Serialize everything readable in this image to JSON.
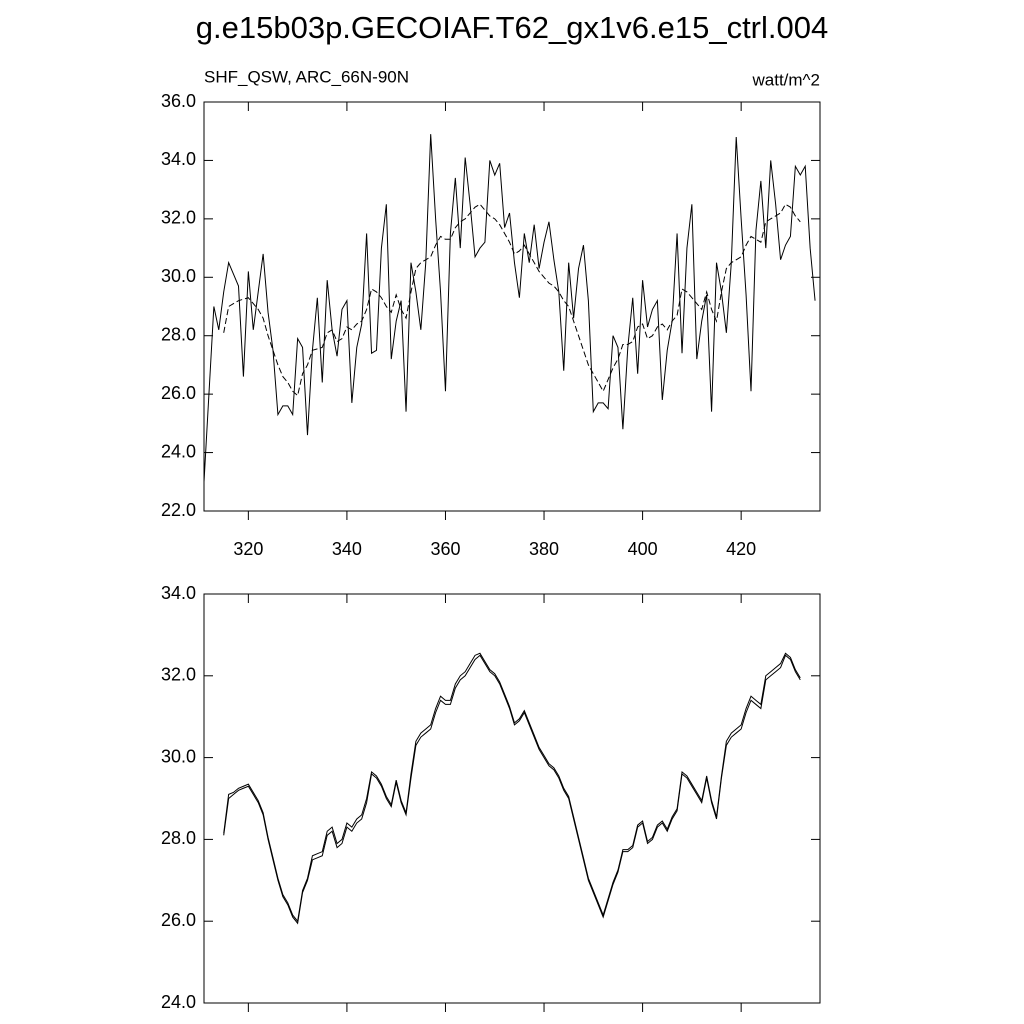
{
  "title": "g.e15b03p.GECOIAF.T62_gx1v6.e15_ctrl.004",
  "chart_data": [
    {
      "type": "line",
      "subtitle": "SHF_QSW, ARC_66N-90N",
      "units": "watt/m^2",
      "xlim": [
        311,
        436
      ],
      "xticks": [
        320,
        340,
        360,
        380,
        400,
        420
      ],
      "show_xtick_labels": true,
      "ylim": [
        22,
        36
      ],
      "yticks": [
        {
          "value": 22,
          "label": "22.0"
        },
        {
          "value": 24,
          "label": "24.0"
        },
        {
          "value": 26,
          "label": "26.0"
        },
        {
          "value": 28,
          "label": "28.0"
        },
        {
          "value": 30,
          "label": "30.0"
        },
        {
          "value": 32,
          "label": "32.0"
        },
        {
          "value": 34,
          "label": "34.0"
        },
        {
          "value": 36,
          "label": "36.0"
        }
      ],
      "series": [
        {
          "color": "#000000",
          "linestyle": "solid",
          "x": [
            311,
            312,
            313,
            314,
            315,
            316,
            317,
            318,
            319,
            320,
            321,
            322,
            323,
            324,
            325,
            326,
            327,
            328,
            329,
            330,
            331,
            332,
            333,
            334,
            335,
            336,
            337,
            338,
            339,
            340,
            341,
            342,
            343,
            344,
            345,
            346,
            347,
            348,
            349,
            350,
            351,
            352,
            353,
            354,
            355,
            356,
            357,
            358,
            359,
            360,
            361,
            362,
            363,
            364,
            365,
            366,
            367,
            368,
            369,
            370,
            371,
            372,
            373,
            374,
            375,
            376,
            377,
            378,
            379,
            380,
            381,
            382,
            383,
            384,
            385,
            386,
            387,
            388,
            389,
            390,
            391,
            392,
            393,
            394,
            395,
            396,
            397,
            398,
            399,
            400,
            401,
            402,
            403,
            404,
            405,
            406,
            407,
            408,
            409,
            410,
            411,
            412,
            413,
            414,
            415,
            416,
            417,
            418,
            419,
            420,
            421,
            422,
            423,
            424,
            425,
            426,
            427,
            428,
            429,
            430,
            431,
            432,
            433,
            434,
            435
          ],
          "values": [
            23.0,
            26.0,
            29.0,
            28.2,
            29.5,
            30.5,
            30.1,
            29.7,
            26.6,
            30.2,
            28.2,
            29.5,
            30.8,
            28.8,
            27.5,
            25.3,
            25.6,
            25.6,
            25.3,
            27.9,
            27.6,
            24.6,
            27.5,
            29.3,
            26.4,
            29.9,
            28.2,
            27.3,
            28.9,
            29.2,
            25.7,
            27.6,
            28.4,
            31.5,
            27.4,
            27.5,
            31.0,
            32.5,
            27.2,
            28.5,
            29.2,
            25.4,
            30.5,
            29.5,
            28.2,
            30.5,
            34.9,
            32.0,
            29.5,
            26.1,
            31.5,
            33.4,
            31.0,
            34.1,
            32.5,
            30.7,
            31.0,
            31.2,
            34.0,
            33.5,
            33.9,
            31.7,
            32.2,
            30.5,
            29.3,
            31.5,
            30.5,
            31.8,
            30.3,
            31.2,
            31.9,
            30.6,
            29.5,
            26.8,
            30.5,
            28.6,
            30.3,
            31.1,
            29.2,
            25.4,
            25.7,
            25.7,
            25.5,
            28.0,
            27.6,
            24.8,
            27.6,
            29.3,
            26.7,
            29.9,
            28.3,
            28.9,
            29.2,
            25.8,
            27.5,
            28.5,
            31.5,
            27.4,
            31.0,
            32.5,
            27.2,
            28.5,
            29.4,
            25.4,
            30.5,
            29.5,
            28.1,
            30.5,
            34.8,
            32.0,
            29.4,
            26.1,
            31.6,
            33.3,
            31.0,
            34.0,
            32.5,
            30.6,
            31.1,
            31.4,
            33.8,
            33.5,
            33.8,
            31.0,
            29.2
          ]
        },
        {
          "color": "#000000",
          "linestyle": "dashed",
          "x": [
            315,
            316,
            317,
            318,
            319,
            320,
            321,
            322,
            323,
            324,
            325,
            326,
            327,
            328,
            329,
            330,
            331,
            332,
            333,
            334,
            335,
            336,
            337,
            338,
            339,
            340,
            341,
            342,
            343,
            344,
            345,
            346,
            347,
            348,
            349,
            350,
            351,
            352,
            353,
            354,
            355,
            356,
            357,
            358,
            359,
            360,
            361,
            362,
            363,
            364,
            365,
            366,
            367,
            368,
            369,
            370,
            371,
            372,
            373,
            374,
            375,
            376,
            377,
            378,
            379,
            380,
            381,
            382,
            383,
            384,
            385,
            386,
            387,
            388,
            389,
            390,
            391,
            392,
            393,
            394,
            395,
            396,
            397,
            398,
            399,
            400,
            401,
            402,
            403,
            404,
            405,
            406,
            407,
            408,
            409,
            410,
            411,
            412,
            413,
            414,
            415,
            416,
            417,
            418,
            419,
            420,
            421,
            422,
            423,
            424,
            425,
            426,
            427,
            428,
            429,
            430,
            431,
            432
          ],
          "values": [
            28.1,
            29.0,
            29.1,
            29.2,
            29.25,
            29.3,
            29.1,
            28.9,
            28.6,
            28.0,
            27.5,
            27.0,
            26.6,
            26.4,
            26.1,
            25.95,
            26.7,
            27.0,
            27.5,
            27.55,
            27.6,
            28.1,
            28.2,
            27.8,
            27.9,
            28.3,
            28.2,
            28.4,
            28.5,
            28.9,
            29.6,
            29.5,
            29.3,
            29.0,
            28.8,
            29.4,
            28.9,
            28.6,
            29.5,
            30.3,
            30.5,
            30.6,
            30.7,
            31.1,
            31.4,
            31.3,
            31.3,
            31.7,
            31.9,
            32.0,
            32.2,
            32.4,
            32.5,
            32.3,
            32.1,
            32.0,
            31.8,
            31.5,
            31.2,
            30.8,
            30.9,
            31.1,
            30.8,
            30.5,
            30.2,
            30.0,
            29.8,
            29.7,
            29.5,
            29.2,
            29.0,
            28.5,
            28.0,
            27.5,
            27.0,
            26.7,
            26.4,
            26.1,
            26.5,
            26.9,
            27.2,
            27.7,
            27.7,
            27.8,
            28.3,
            28.4,
            27.9,
            28.0,
            28.3,
            28.4,
            28.2,
            28.5,
            28.7,
            29.6,
            29.5,
            29.3,
            29.1,
            28.9,
            29.5,
            28.9,
            28.5,
            29.5,
            30.3,
            30.5,
            30.6,
            30.7,
            31.1,
            31.4,
            31.3,
            31.2,
            31.9,
            32.0,
            32.1,
            32.2,
            32.5,
            32.4,
            32.1,
            31.9
          ]
        }
      ]
    },
    {
      "type": "line",
      "xlim": [
        311,
        436
      ],
      "xticks": [
        320,
        340,
        360,
        380,
        400,
        420
      ],
      "show_xtick_labels": false,
      "ylim": [
        24,
        34
      ],
      "yticks": [
        {
          "value": 24,
          "label": "24.0"
        },
        {
          "value": 26,
          "label": "26.0"
        },
        {
          "value": 28,
          "label": "28.0"
        },
        {
          "value": 30,
          "label": "30.0"
        },
        {
          "value": 32,
          "label": "32.0"
        },
        {
          "value": 34,
          "label": "34.0"
        }
      ],
      "series": [
        {
          "color": "#000000",
          "linestyle": "solid",
          "x": [
            315,
            316,
            317,
            318,
            319,
            320,
            321,
            322,
            323,
            324,
            325,
            326,
            327,
            328,
            329,
            330,
            331,
            332,
            333,
            334,
            335,
            336,
            337,
            338,
            339,
            340,
            341,
            342,
            343,
            344,
            345,
            346,
            347,
            348,
            349,
            350,
            351,
            352,
            353,
            354,
            355,
            356,
            357,
            358,
            359,
            360,
            361,
            362,
            363,
            364,
            365,
            366,
            367,
            368,
            369,
            370,
            371,
            372,
            373,
            374,
            375,
            376,
            377,
            378,
            379,
            380,
            381,
            382,
            383,
            384,
            385,
            386,
            387,
            388,
            389,
            390,
            391,
            392,
            393,
            394,
            395,
            396,
            397,
            398,
            399,
            400,
            401,
            402,
            403,
            404,
            405,
            406,
            407,
            408,
            409,
            410,
            411,
            412,
            413,
            414,
            415,
            416,
            417,
            418,
            419,
            420,
            421,
            422,
            423,
            424,
            425,
            426,
            427,
            428,
            429,
            430,
            431,
            432
          ],
          "values": [
            28.1,
            29.0,
            29.1,
            29.2,
            29.25,
            29.3,
            29.1,
            28.9,
            28.6,
            28.0,
            27.5,
            27.0,
            26.6,
            26.4,
            26.1,
            25.95,
            26.7,
            27.0,
            27.5,
            27.55,
            27.6,
            28.1,
            28.2,
            27.8,
            27.9,
            28.3,
            28.2,
            28.4,
            28.5,
            28.9,
            29.6,
            29.5,
            29.3,
            29.0,
            28.8,
            29.4,
            28.9,
            28.6,
            29.5,
            30.3,
            30.5,
            30.6,
            30.7,
            31.1,
            31.4,
            31.3,
            31.3,
            31.7,
            31.9,
            32.0,
            32.2,
            32.4,
            32.5,
            32.3,
            32.1,
            32.0,
            31.8,
            31.5,
            31.2,
            30.8,
            30.9,
            31.1,
            30.8,
            30.5,
            30.2,
            30.0,
            29.8,
            29.7,
            29.5,
            29.2,
            29.0,
            28.5,
            28.0,
            27.5,
            27.0,
            26.7,
            26.4,
            26.1,
            26.5,
            26.9,
            27.2,
            27.7,
            27.7,
            27.8,
            28.3,
            28.4,
            27.9,
            28.0,
            28.3,
            28.4,
            28.2,
            28.5,
            28.7,
            29.6,
            29.5,
            29.3,
            29.1,
            28.9,
            29.5,
            28.9,
            28.5,
            29.5,
            30.3,
            30.5,
            30.6,
            30.7,
            31.1,
            31.4,
            31.3,
            31.2,
            31.9,
            32.0,
            32.1,
            32.2,
            32.5,
            32.4,
            32.1,
            31.9
          ]
        },
        {
          "color": "#000000",
          "linestyle": "solid",
          "x": [
            315,
            316,
            317,
            318,
            319,
            320,
            321,
            322,
            323,
            324,
            325,
            326,
            327,
            328,
            329,
            330,
            331,
            332,
            333,
            334,
            335,
            336,
            337,
            338,
            339,
            340,
            341,
            342,
            343,
            344,
            345,
            346,
            347,
            348,
            349,
            350,
            351,
            352,
            353,
            354,
            355,
            356,
            357,
            358,
            359,
            360,
            361,
            362,
            363,
            364,
            365,
            366,
            367,
            368,
            369,
            370,
            371,
            372,
            373,
            374,
            375,
            376,
            377,
            378,
            379,
            380,
            381,
            382,
            383,
            384,
            385,
            386,
            387,
            388,
            389,
            390,
            391,
            392,
            393,
            394,
            395,
            396,
            397,
            398,
            399,
            400,
            401,
            402,
            403,
            404,
            405,
            406,
            407,
            408,
            409,
            410,
            411,
            412,
            413,
            414,
            415,
            416,
            417,
            418,
            419,
            420,
            421,
            422,
            423,
            424,
            425,
            426,
            427,
            428,
            429,
            430,
            431,
            432
          ],
          "values": [
            28.15,
            29.1,
            29.15,
            29.25,
            29.3,
            29.35,
            29.15,
            28.95,
            28.65,
            28.05,
            27.55,
            27.05,
            26.65,
            26.45,
            26.15,
            26.0,
            26.75,
            27.05,
            27.6,
            27.65,
            27.7,
            28.2,
            28.3,
            27.9,
            28.0,
            28.4,
            28.3,
            28.5,
            28.6,
            29.0,
            29.65,
            29.55,
            29.35,
            29.05,
            28.85,
            29.45,
            28.95,
            28.65,
            29.6,
            30.4,
            30.6,
            30.7,
            30.8,
            31.2,
            31.5,
            31.4,
            31.4,
            31.8,
            32.0,
            32.1,
            32.3,
            32.5,
            32.55,
            32.35,
            32.15,
            32.05,
            31.85,
            31.55,
            31.25,
            30.85,
            30.95,
            31.15,
            30.85,
            30.55,
            30.25,
            30.05,
            29.85,
            29.75,
            29.55,
            29.25,
            29.05,
            28.55,
            28.05,
            27.55,
            27.05,
            26.75,
            26.45,
            26.15,
            26.55,
            26.95,
            27.25,
            27.75,
            27.75,
            27.85,
            28.35,
            28.45,
            27.95,
            28.05,
            28.35,
            28.45,
            28.25,
            28.55,
            28.75,
            29.65,
            29.55,
            29.35,
            29.15,
            28.95,
            29.55,
            28.95,
            28.55,
            29.55,
            30.4,
            30.6,
            30.7,
            30.8,
            31.2,
            31.5,
            31.4,
            31.3,
            32.0,
            32.1,
            32.2,
            32.3,
            32.55,
            32.45,
            32.15,
            31.95
          ]
        }
      ]
    }
  ]
}
